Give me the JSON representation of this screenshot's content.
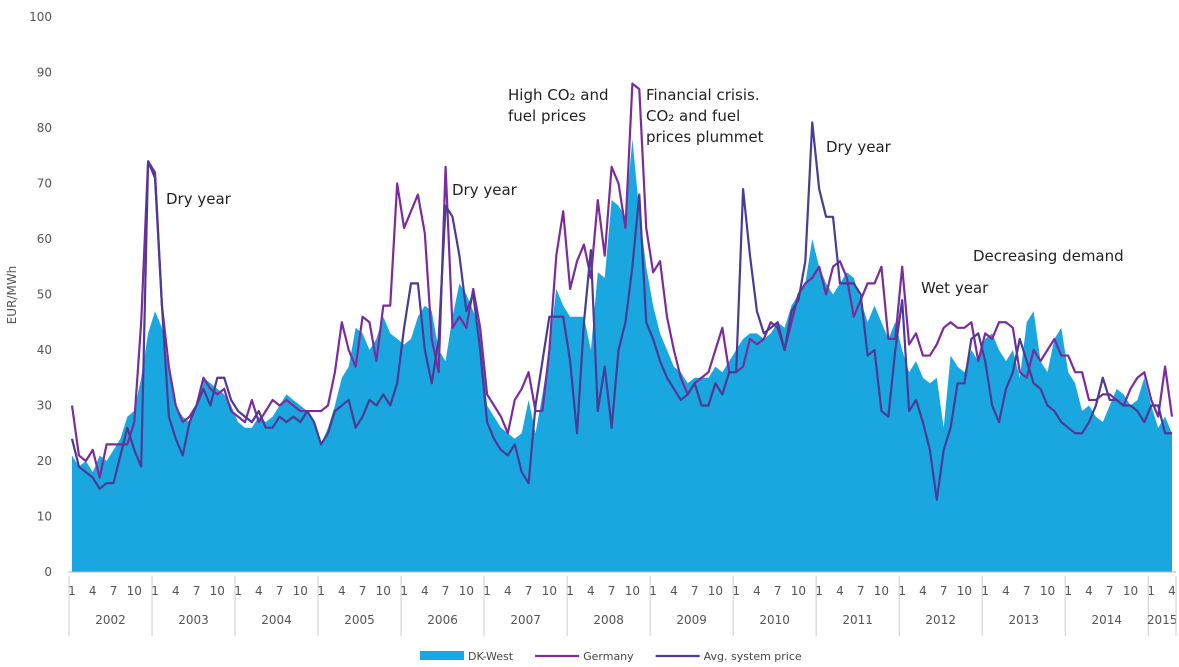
{
  "chart_data": {
    "type": "area-line",
    "y_label": "EUR/MWh",
    "ylim": [
      0,
      100
    ],
    "yticks": [
      0,
      10,
      20,
      30,
      40,
      50,
      60,
      70,
      80,
      90,
      100
    ],
    "x_groups": [
      "2002",
      "2003",
      "2004",
      "2005",
      "2006",
      "2007",
      "2008",
      "2009",
      "2010",
      "2011",
      "2012",
      "2013",
      "2014",
      "2015"
    ],
    "categories": [
      "1",
      null,
      null,
      "4",
      null,
      null,
      "7",
      null,
      null,
      "10",
      null,
      null,
      "1",
      null,
      null,
      "4",
      null,
      null,
      "7",
      null,
      null,
      "10",
      null,
      null,
      "1",
      null,
      null,
      "4",
      null,
      null,
      "7",
      null,
      null,
      "10",
      null,
      null,
      "1",
      null,
      null,
      "4",
      null,
      null,
      "7",
      null,
      null,
      "10",
      null,
      null,
      "1",
      null,
      null,
      "4",
      null,
      null,
      "7",
      null,
      null,
      "10",
      null,
      null,
      "1",
      null,
      null,
      "4",
      null,
      null,
      "7",
      null,
      null,
      "10",
      null,
      null,
      "1",
      null,
      null,
      "4",
      null,
      null,
      "7",
      null,
      null,
      "10",
      null,
      null,
      "1",
      null,
      null,
      "4",
      null,
      null,
      "7",
      null,
      null,
      "10",
      null,
      null,
      "1",
      null,
      null,
      "4",
      null,
      null,
      "7",
      null,
      null,
      "10",
      null,
      null,
      "1",
      null,
      null,
      "4",
      null,
      null,
      "7",
      null,
      null,
      "10",
      null,
      null,
      "1",
      null,
      null,
      "4",
      null,
      null,
      "7",
      null,
      null,
      "10",
      null,
      null,
      "1",
      null,
      null,
      "4",
      null,
      null,
      "7",
      null,
      null,
      "10",
      null,
      null,
      "1",
      null,
      null,
      "4",
      null,
      null,
      "7",
      null,
      null,
      "10",
      null,
      null,
      "1",
      null,
      null,
      "4"
    ],
    "series": [
      {
        "name": "DK-West",
        "kind": "area",
        "color": "#1aa7e0",
        "values": [
          21,
          19,
          20,
          18,
          21,
          20,
          22,
          24,
          28,
          29,
          35,
          43,
          47,
          44,
          36,
          30,
          28,
          27,
          30,
          35,
          34,
          33,
          32,
          30,
          27,
          26,
          26,
          28,
          27,
          28,
          30,
          32,
          31,
          30,
          29,
          27,
          23,
          26,
          30,
          35,
          37,
          44,
          43,
          40,
          42,
          46,
          43,
          42,
          41,
          42,
          46,
          48,
          47,
          40,
          38,
          46,
          52,
          50,
          47,
          44,
          30,
          28,
          26,
          25,
          24,
          25,
          31,
          25,
          32,
          40,
          51,
          48,
          46,
          46,
          46,
          40,
          54,
          53,
          67,
          66,
          64,
          78,
          65,
          55,
          48,
          43,
          40,
          37,
          36,
          34,
          35,
          35,
          35,
          37,
          36,
          38,
          40,
          42,
          43,
          43,
          42,
          43,
          45,
          44,
          48,
          50,
          52,
          60,
          55,
          52,
          50,
          52,
          54,
          53,
          49,
          45,
          48,
          45,
          42,
          45,
          40,
          36,
          38,
          35,
          34,
          35,
          26,
          39,
          37,
          36,
          40,
          38,
          42,
          43,
          40,
          38,
          40,
          35,
          45,
          47,
          38,
          36,
          42,
          44,
          36,
          34,
          29,
          30,
          28,
          27,
          30,
          33,
          32,
          30,
          31,
          35,
          30,
          26,
          28,
          25
        ]
      },
      {
        "name": "Germany",
        "kind": "line",
        "color": "#7b2c9c",
        "values": [
          30,
          21,
          20,
          22,
          17,
          23,
          23,
          23,
          23,
          27,
          45,
          74,
          72,
          48,
          37,
          30,
          27,
          28,
          30,
          35,
          33,
          32,
          33,
          29,
          28,
          27,
          31,
          27,
          29,
          31,
          30,
          31,
          30,
          29,
          29,
          29,
          29,
          30,
          36,
          45,
          40,
          37,
          46,
          45,
          38,
          48,
          48,
          70,
          62,
          65,
          68,
          61,
          42,
          36,
          73,
          44,
          46,
          44,
          51,
          44,
          32,
          30,
          28,
          25,
          31,
          33,
          36,
          29,
          29,
          40,
          57,
          65,
          51,
          56,
          59,
          53,
          67,
          57,
          73,
          70,
          62,
          88,
          87,
          62,
          54,
          56,
          46,
          40,
          35,
          32,
          34,
          35,
          36,
          40,
          44,
          36,
          36,
          37,
          42,
          41,
          42,
          45,
          44,
          40,
          45,
          50,
          52,
          53,
          55,
          50,
          55,
          56,
          53,
          46,
          49,
          52,
          52,
          55,
          42,
          42,
          55,
          41,
          43,
          39,
          39,
          41,
          44,
          45,
          44,
          44,
          45,
          38,
          43,
          42,
          45,
          45,
          44,
          36,
          35,
          40,
          38,
          40,
          42,
          39,
          39,
          36,
          36,
          31,
          31,
          32,
          32,
          31,
          30,
          33,
          35,
          36,
          31,
          28,
          37,
          28
        ]
      },
      {
        "name": "Avg. system price",
        "kind": "line",
        "color": "#4b3a96",
        "values": [
          24,
          19,
          18,
          17,
          15,
          16,
          16,
          21,
          26,
          22,
          19,
          74,
          71,
          48,
          28,
          24,
          21,
          27,
          30,
          33,
          30,
          35,
          35,
          31,
          29,
          28,
          27,
          29,
          26,
          26,
          28,
          27,
          28,
          27,
          29,
          27,
          23,
          25,
          29,
          30,
          31,
          26,
          28,
          31,
          30,
          32,
          30,
          34,
          44,
          52,
          52,
          40,
          34,
          42,
          66,
          64,
          57,
          47,
          50,
          40,
          27,
          24,
          22,
          21,
          23,
          18,
          16,
          30,
          38,
          46,
          46,
          46,
          38,
          25,
          45,
          58,
          29,
          37,
          26,
          40,
          45,
          55,
          68,
          45,
          42,
          38,
          35,
          33,
          31,
          32,
          34,
          30,
          30,
          34,
          32,
          36,
          36,
          69,
          57,
          47,
          43,
          44,
          45,
          40,
          47,
          49,
          56,
          81,
          69,
          64,
          64,
          52,
          52,
          52,
          50,
          39,
          40,
          29,
          28,
          40,
          49,
          29,
          31,
          27,
          22,
          13,
          22,
          26,
          34,
          34,
          42,
          43,
          38,
          30,
          27,
          33,
          36,
          42,
          38,
          34,
          33,
          30,
          29,
          27,
          26,
          25,
          25,
          27,
          30,
          35,
          31,
          31,
          30,
          30,
          29,
          27,
          30,
          30,
          25,
          25
        ]
      }
    ],
    "annotations": [
      {
        "lines": [
          "Dry year"
        ]
      },
      {
        "lines": [
          "Dry year"
        ]
      },
      {
        "lines": [
          "High CO₂ and",
          "fuel prices"
        ]
      },
      {
        "lines": [
          "Financial crisis.",
          "CO₂ and fuel",
          "prices plummet"
        ]
      },
      {
        "lines": [
          "Dry year"
        ]
      },
      {
        "lines": [
          "Wet year"
        ]
      },
      {
        "lines": [
          "Decreasing demand"
        ]
      }
    ]
  }
}
